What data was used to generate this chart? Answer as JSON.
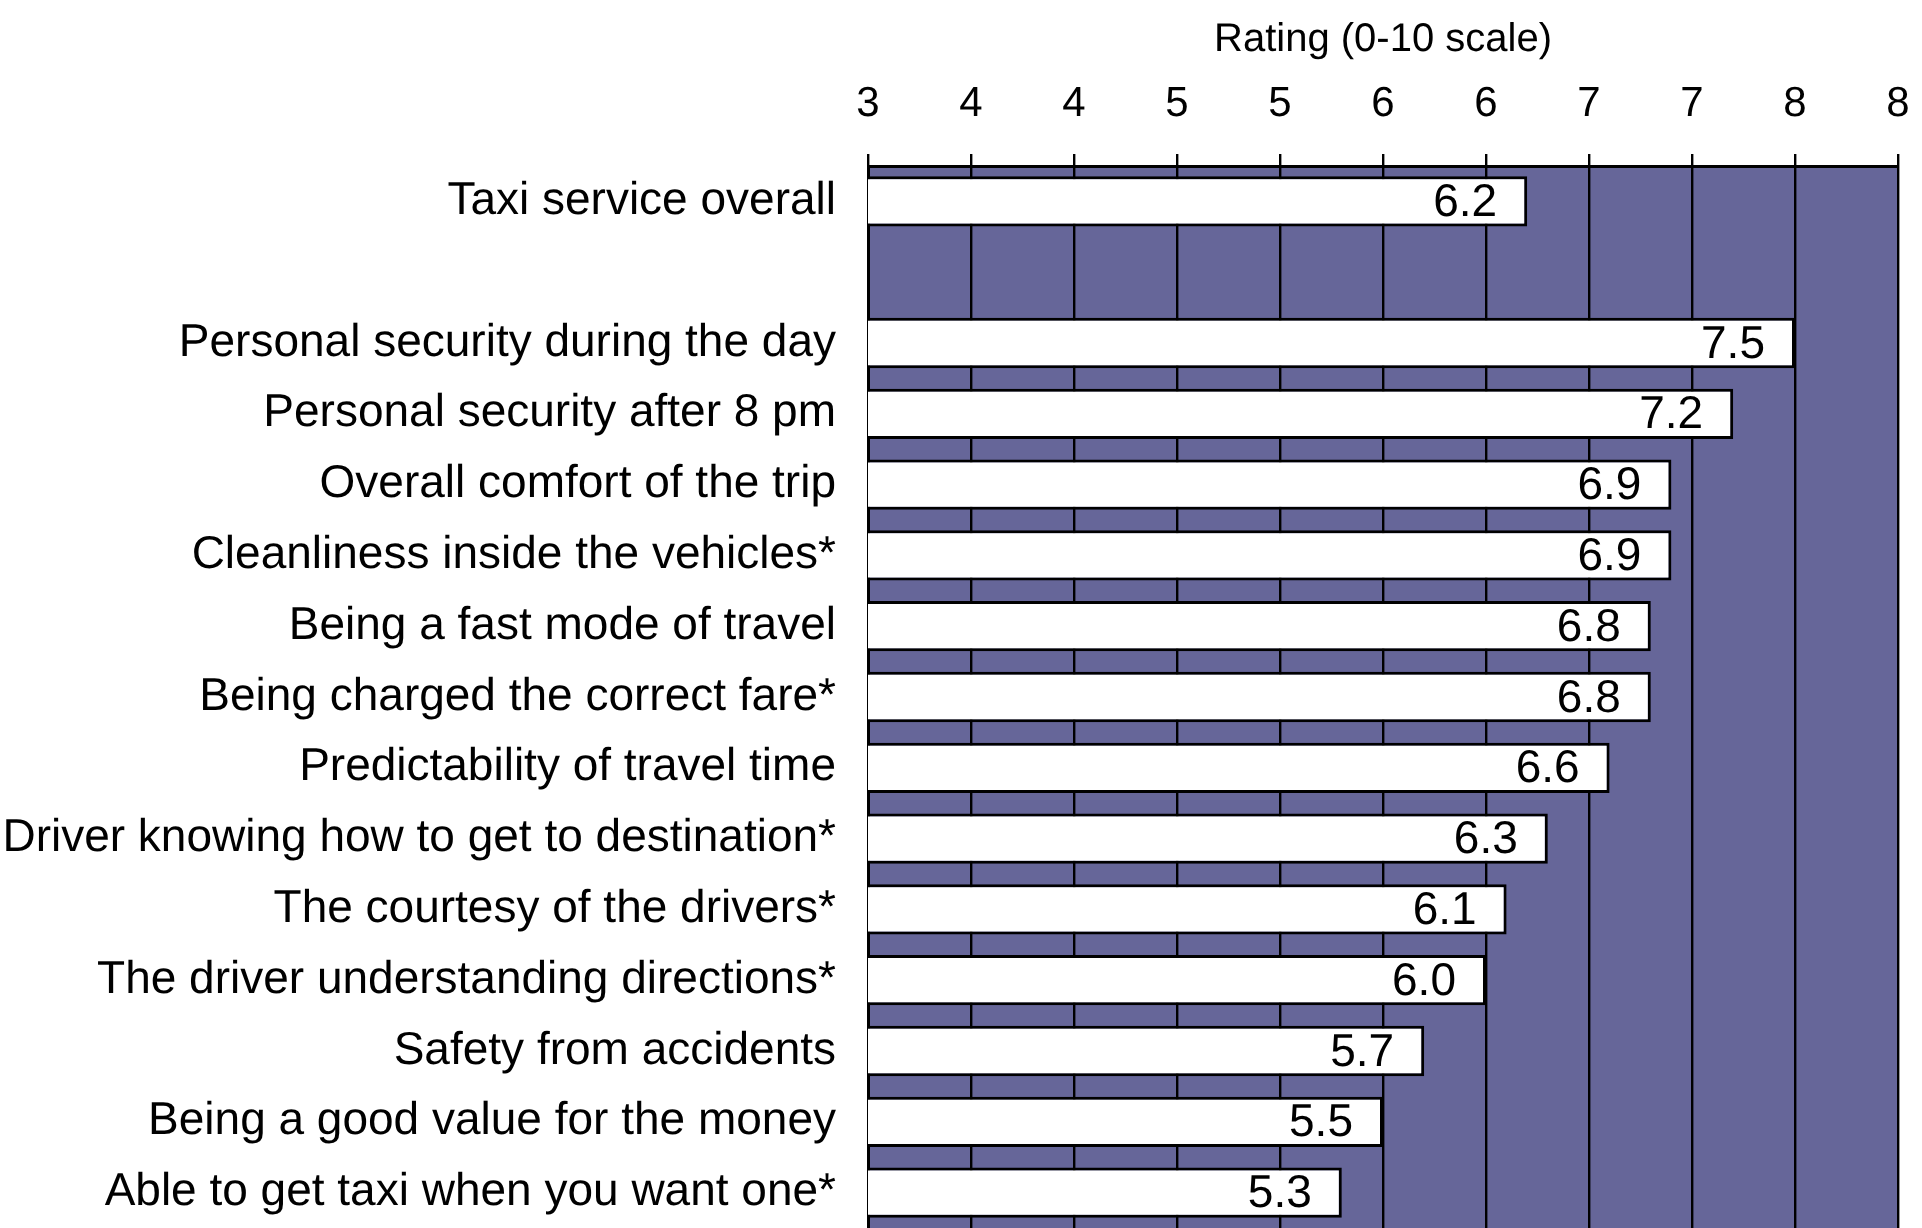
{
  "chart_data": {
    "type": "bar",
    "orientation": "horizontal",
    "xlabel": "Rating (0-10 scale)",
    "categories": [
      "Taxi service overall",
      null,
      "Personal security during the day",
      "Personal security after 8 pm",
      "Overall comfort of the trip",
      "Cleanliness inside the vehicles*",
      "Being a fast mode of travel",
      "Being charged the correct fare*",
      "Predictability of travel time",
      "Driver knowing how to get to destination*",
      "The courtesy of the drivers*",
      "The driver understanding directions*",
      "Safety from accidents",
      "Being a good value for the money",
      "Able to get taxi when you want one*"
    ],
    "values": [
      6.2,
      null,
      7.5,
      7.2,
      6.9,
      6.9,
      6.8,
      6.8,
      6.6,
      6.3,
      6.1,
      6.0,
      5.7,
      5.5,
      5.3
    ],
    "value_labels": [
      "6.2",
      null,
      "7.5",
      "7.2",
      "6.9",
      "6.9",
      "6.8",
      "6.8",
      "6.6",
      "6.3",
      "6.1",
      "6.0",
      "5.7",
      "5.5",
      "5.3"
    ],
    "color": "#ffffff",
    "xlim": [
      3,
      8
    ],
    "xticks": [
      3,
      {
        "value": 3.5,
        "label": "4"
      },
      4,
      {
        "value": 4.5,
        "label": "5"
      },
      5,
      {
        "value": 5.5,
        "label": "6"
      },
      6,
      {
        "value": 6.5,
        "label": "7"
      },
      7,
      {
        "value": 7.5,
        "label": "8"
      },
      8
    ],
    "grid": "x"
  }
}
